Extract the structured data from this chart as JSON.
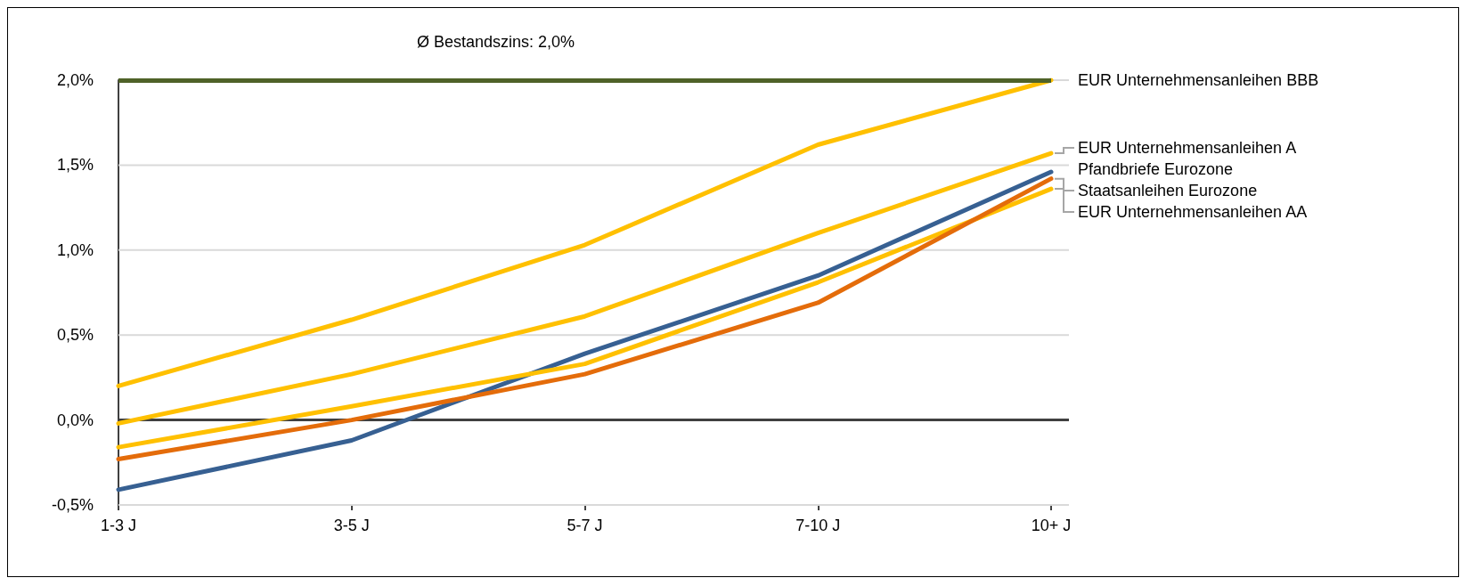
{
  "chart_data": {
    "type": "line",
    "categories": [
      "1-3 J",
      "3-5 J",
      "5-7 J",
      "7-10 J",
      "10+ J"
    ],
    "series": [
      {
        "name": "EUR Unternehmensanleihen BBB",
        "color": "#ffc000",
        "values": [
          0.2,
          0.59,
          1.03,
          1.62,
          2.0
        ]
      },
      {
        "name": "EUR Unternehmensanleihen A",
        "color": "#ffc000",
        "values": [
          -0.02,
          0.27,
          0.61,
          1.1,
          1.57
        ]
      },
      {
        "name": "Pfandbriefe Eurozone",
        "color": "#376092",
        "values": [
          -0.41,
          -0.12,
          0.39,
          0.85,
          1.46
        ]
      },
      {
        "name": "EUR Unternehmensanleihen AA",
        "color": "#ffc000",
        "values": [
          -0.16,
          0.08,
          0.33,
          0.81,
          1.36
        ]
      },
      {
        "name": "Staatsanleihen Eurozone",
        "color": "#e46c0a",
        "values": [
          -0.23,
          0.0,
          0.27,
          0.69,
          1.42
        ]
      }
    ],
    "ylim": [
      -0.5,
      2.0
    ],
    "yticks": [
      {
        "value": -0.5,
        "label": "-0,5%"
      },
      {
        "value": 0,
        "label": "0,0%"
      },
      {
        "value": 0.5,
        "label": "0,5%"
      },
      {
        "value": 1,
        "label": "1,0%"
      },
      {
        "value": 1.5,
        "label": "1,5%"
      },
      {
        "value": 2,
        "label": "2,0%"
      }
    ],
    "grid": "y",
    "marker": "none",
    "line_style": "solid",
    "ref_lines": [
      {
        "axis": "y",
        "value": 2.0,
        "label": "Ø Bestandszins: 2,0%",
        "color": "#4f6228"
      }
    ]
  }
}
